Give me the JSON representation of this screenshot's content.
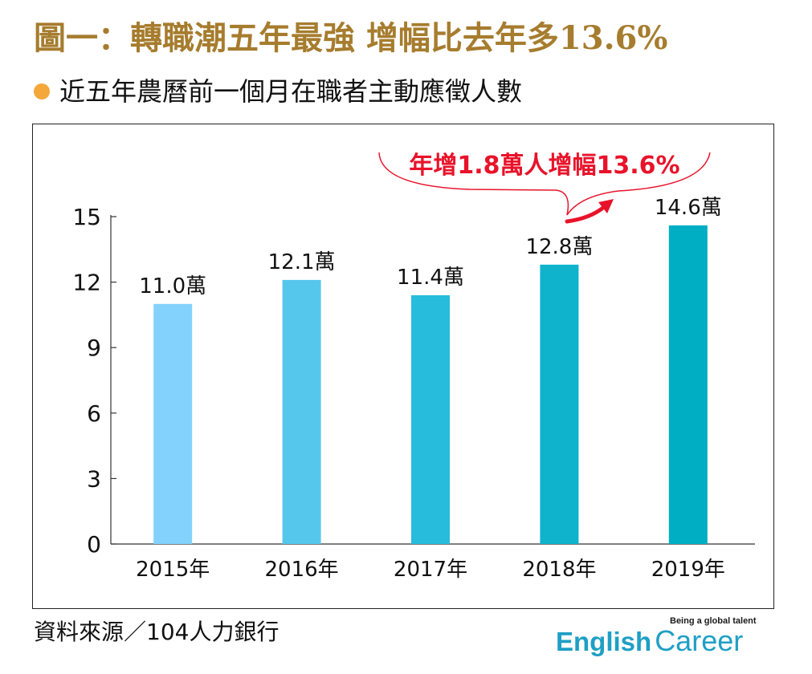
{
  "header": {
    "title": "圖一：轉職潮五年最強  增幅比去年多13.6%",
    "subtitle": "近五年農曆前一個月在職者主動應徵人數"
  },
  "footer": {
    "source": "資料來源／104人力銀行",
    "brand_tagline": "Being a global talent",
    "brand_word1": "English",
    "brand_word2": "Career"
  },
  "colors": {
    "title": "#a67c2e",
    "bullet": "#f4a83a",
    "callout": "#e8132a",
    "bars": [
      "#82d2fd",
      "#56c7ec",
      "#27bcdc",
      "#0fb3cb",
      "#00aec3"
    ]
  },
  "chart_data": {
    "type": "bar",
    "categories": [
      "2015年",
      "2016年",
      "2017年",
      "2018年",
      "2019年"
    ],
    "values": [
      11.0,
      12.1,
      11.4,
      12.8,
      14.6
    ],
    "data_labels": [
      "11.0萬",
      "12.1萬",
      "11.4萬",
      "12.8萬",
      "14.6萬"
    ],
    "yticks": [
      0,
      3,
      6,
      9,
      12,
      15
    ],
    "ylim": [
      0,
      15
    ],
    "grid": false,
    "annotation": "年增1.8萬人增幅13.6%"
  }
}
